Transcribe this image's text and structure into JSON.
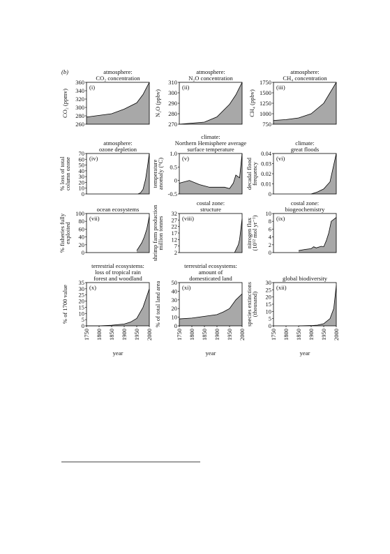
{
  "figure_label": "(b)",
  "chart_data": [
    {
      "type": "area",
      "panel": "(i)",
      "title": [
        "atmosphere:",
        "CO₂ concentration"
      ],
      "ylabel": [
        "CO₂ (ppmv)"
      ],
      "xlim": [
        1750,
        2000
      ],
      "ylim": [
        260,
        360
      ],
      "yticks": [
        260,
        280,
        300,
        320,
        340,
        360
      ],
      "x": [
        1750,
        1800,
        1850,
        1900,
        1950,
        1975,
        2000
      ],
      "values": [
        277,
        281,
        285,
        296,
        311,
        331,
        360
      ]
    },
    {
      "type": "area",
      "panel": "(ii)",
      "title": [
        "atmosphere:",
        "N₂O concentration"
      ],
      "ylabel": [
        "N₂O (ppbv)"
      ],
      "xlim": [
        1750,
        2000
      ],
      "ylim": [
        270,
        310
      ],
      "yticks": [
        270,
        280,
        290,
        300,
        310
      ],
      "x": [
        1750,
        1800,
        1850,
        1900,
        1950,
        1975,
        2000
      ],
      "values": [
        270,
        271,
        272,
        277,
        289,
        298,
        310
      ]
    },
    {
      "type": "area",
      "panel": "(iii)",
      "title": [
        "atmosphere:",
        "CH₄ concentration"
      ],
      "ylabel": [
        "CH₄ (ppbv)"
      ],
      "xlim": [
        1750,
        2000
      ],
      "ylim": [
        750,
        1750
      ],
      "yticks": [
        750,
        1000,
        1250,
        1500,
        1750
      ],
      "x": [
        1750,
        1800,
        1850,
        1900,
        1950,
        1975,
        2000
      ],
      "values": [
        840,
        860,
        900,
        1000,
        1250,
        1500,
        1750
      ]
    },
    {
      "type": "area",
      "panel": "(iv)",
      "title": [
        "atmosphere:",
        "ozone depletion"
      ],
      "ylabel": [
        "% loss of total",
        "column ozone"
      ],
      "xlim": [
        1750,
        2000
      ],
      "ylim": [
        0,
        70
      ],
      "yticks": [
        0,
        10,
        20,
        30,
        40,
        50,
        60,
        70
      ],
      "x": [
        1955,
        1965,
        1975,
        1985,
        1992,
        2000
      ],
      "values": [
        0,
        2,
        8,
        25,
        45,
        70
      ]
    },
    {
      "type": "area",
      "panel": "(v)",
      "title": [
        "climate:",
        "Northern Hemisphere average",
        "surface temperature"
      ],
      "ylabel": [
        "temperature",
        "anomaly (°C)"
      ],
      "xlim": [
        1750,
        2000
      ],
      "ylim": [
        -0.5,
        1
      ],
      "yticks": [
        -0.5,
        0,
        0.5,
        {
          "value": 1,
          "label": "1.0"
        }
      ],
      "x": [
        1750,
        1790,
        1830,
        1870,
        1910,
        1930,
        1950,
        1965,
        1975,
        1990,
        2000
      ],
      "values": [
        -0.1,
        0,
        -0.15,
        -0.25,
        -0.25,
        -0.25,
        -0.3,
        -0.1,
        0.2,
        0.1,
        1
      ]
    },
    {
      "type": "area",
      "panel": "(vi)",
      "title": [
        "climate:",
        "great floods"
      ],
      "ylabel": [
        "decadal flood",
        "frequency"
      ],
      "xlim": [
        1750,
        2000
      ],
      "ylim": [
        0,
        0.04
      ],
      "yticks": [
        0,
        0.01,
        0.02,
        0.03,
        0.04
      ],
      "x": [
        1900,
        1925,
        1950,
        1975,
        2000
      ],
      "values": [
        0,
        0.002,
        0.005,
        0.012,
        0.04
      ]
    },
    {
      "type": "area",
      "panel": "(vii)",
      "title": [
        "ocean ecosystems"
      ],
      "ylabel": [
        "% fisheries fully",
        "exploited"
      ],
      "xlim": [
        1750,
        2000
      ],
      "ylim": [
        0,
        100
      ],
      "yticks": [
        0,
        20,
        40,
        60,
        80,
        100
      ],
      "x": [
        1950,
        1960,
        1970,
        1980,
        1990,
        2000
      ],
      "values": [
        5,
        15,
        25,
        40,
        60,
        93
      ]
    },
    {
      "type": "area",
      "panel": "(viii)",
      "title": [
        "costal zone:",
        "structure"
      ],
      "ylabel": [
        "shrimp farm production",
        "million tonnes"
      ],
      "xlim": [
        1750,
        2000
      ],
      "ylim": [
        2,
        32
      ],
      "yticks": [
        2,
        7,
        12,
        17,
        22,
        27,
        32
      ],
      "x": [
        1970,
        1975,
        1980,
        1985,
        1990,
        1995,
        2000
      ],
      "values": [
        2,
        4,
        6,
        8,
        12,
        20,
        28
      ]
    },
    {
      "type": "area",
      "panel": "(ix)",
      "title": [
        "costal zone:",
        "biogeochemistry"
      ],
      "ylabel": [
        "nitrogen flux",
        "(10¹² mol yr⁻¹)"
      ],
      "xlim": [
        1750,
        2000
      ],
      "ylim": [
        0,
        10
      ],
      "yticks": [
        0,
        2,
        4,
        6,
        8,
        10
      ],
      "x": [
        1850,
        1875,
        1900,
        1910,
        1920,
        1940,
        1950,
        1960,
        1970,
        1980,
        1990,
        2000
      ],
      "values": [
        0.5,
        0.8,
        1,
        1.5,
        1.2,
        1.6,
        1.5,
        3,
        5,
        8,
        8.5,
        9
      ]
    },
    {
      "type": "area",
      "panel": "(x)",
      "title": [
        "terrestrial ecosystems:",
        "loss of tropical rain",
        "forest and woodland"
      ],
      "ylabel": [
        "% of 1700 value"
      ],
      "xlabel": "year",
      "xlim": [
        1750,
        2000
      ],
      "xticks": [
        1750,
        1800,
        1850,
        1900,
        1950,
        2000
      ],
      "ylim": [
        0,
        35
      ],
      "yticks": [
        0,
        5,
        10,
        15,
        20,
        25,
        30,
        35
      ],
      "x": [
        1750,
        1800,
        1850,
        1900,
        1925,
        1950,
        1975,
        2000
      ],
      "values": [
        0,
        0,
        0.5,
        1.5,
        3,
        6,
        15,
        30
      ]
    },
    {
      "type": "area",
      "panel": "(xi)",
      "title": [
        "terrestrial ecosystems:",
        "amount of",
        "domesticated land"
      ],
      "ylabel": [
        "% of total land area"
      ],
      "xlabel": "year",
      "xlim": [
        1750,
        2000
      ],
      "xticks": [
        1750,
        1800,
        1850,
        1900,
        1950,
        2000
      ],
      "ylim": [
        0,
        50
      ],
      "yticks": [
        0,
        10,
        20,
        30,
        40,
        50
      ],
      "x": [
        1750,
        1800,
        1850,
        1900,
        1925,
        1950,
        1975,
        2000
      ],
      "values": [
        8,
        9,
        11,
        13,
        16,
        20,
        30,
        37
      ]
    },
    {
      "type": "area",
      "panel": "(xii)",
      "title": [
        "global biodiversity"
      ],
      "ylabel": [
        "species extinctions",
        "(thousand)"
      ],
      "xlabel": "year",
      "xlim": [
        1750,
        2000
      ],
      "xticks": [
        1750,
        1800,
        1850,
        1900,
        1950,
        2000
      ],
      "ylim": [
        0,
        30
      ],
      "yticks": [
        0,
        5,
        10,
        15,
        20,
        25,
        30
      ],
      "x": [
        1850,
        1900,
        1925,
        1950,
        1975,
        1990,
        2000
      ],
      "values": [
        0,
        0.2,
        0.5,
        1.5,
        5,
        12,
        28
      ]
    }
  ]
}
